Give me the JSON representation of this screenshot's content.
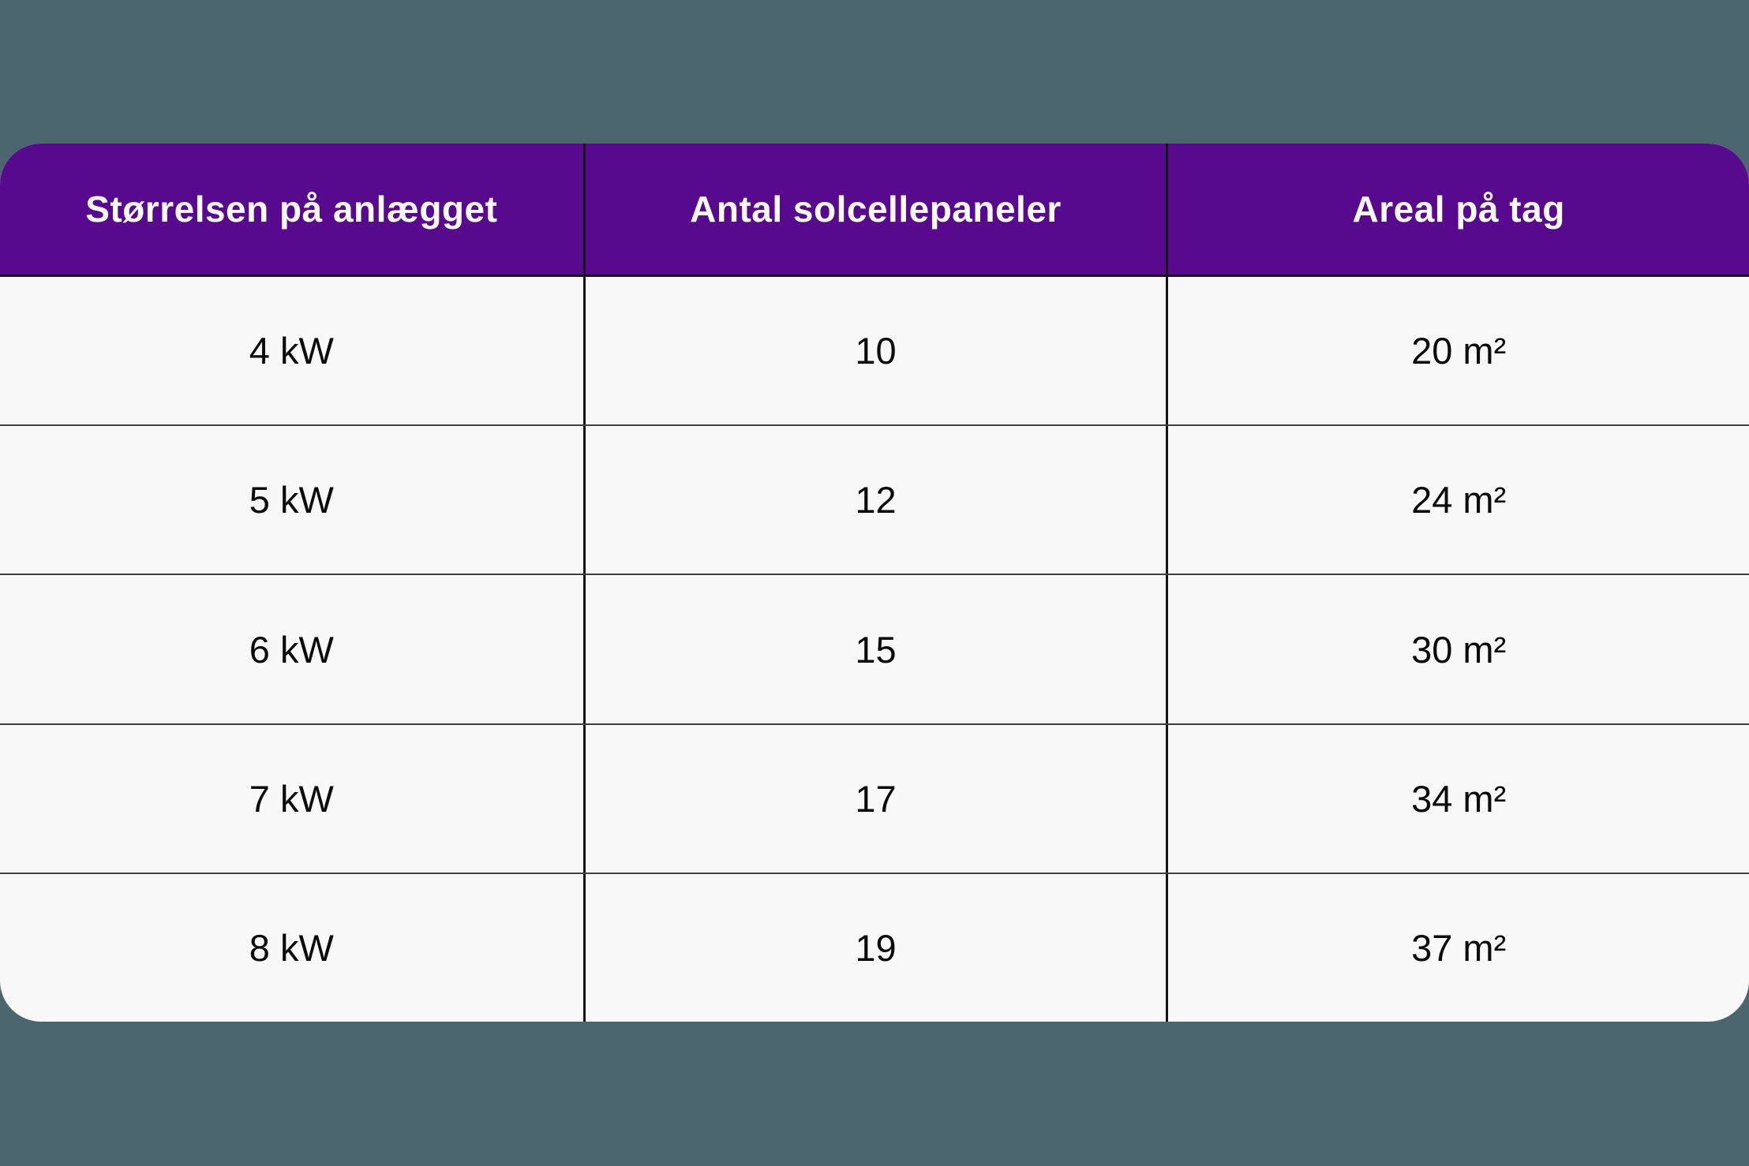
{
  "chart_data": {
    "type": "table",
    "columns": [
      "Størrelsen på anlægget",
      "Antal solcellepaneler",
      "Areal på tag"
    ],
    "rows": [
      [
        "4 kW",
        "10",
        "20 m²"
      ],
      [
        "5 kW",
        "12",
        "24 m²"
      ],
      [
        "6 kW",
        "15",
        "30 m²"
      ],
      [
        "7 kW",
        "17",
        "34 m²"
      ],
      [
        "8 kW",
        "19",
        "37 m²"
      ]
    ]
  },
  "colors": {
    "page_background": "#4C6670",
    "header_background": "#570A8D",
    "header_text": "#FAF9FC",
    "body_background": "#F8F8F8",
    "cell_text": "#0B0B0B",
    "divider_vertical": "#141414",
    "divider_horizontal": "#3F3F3F"
  }
}
